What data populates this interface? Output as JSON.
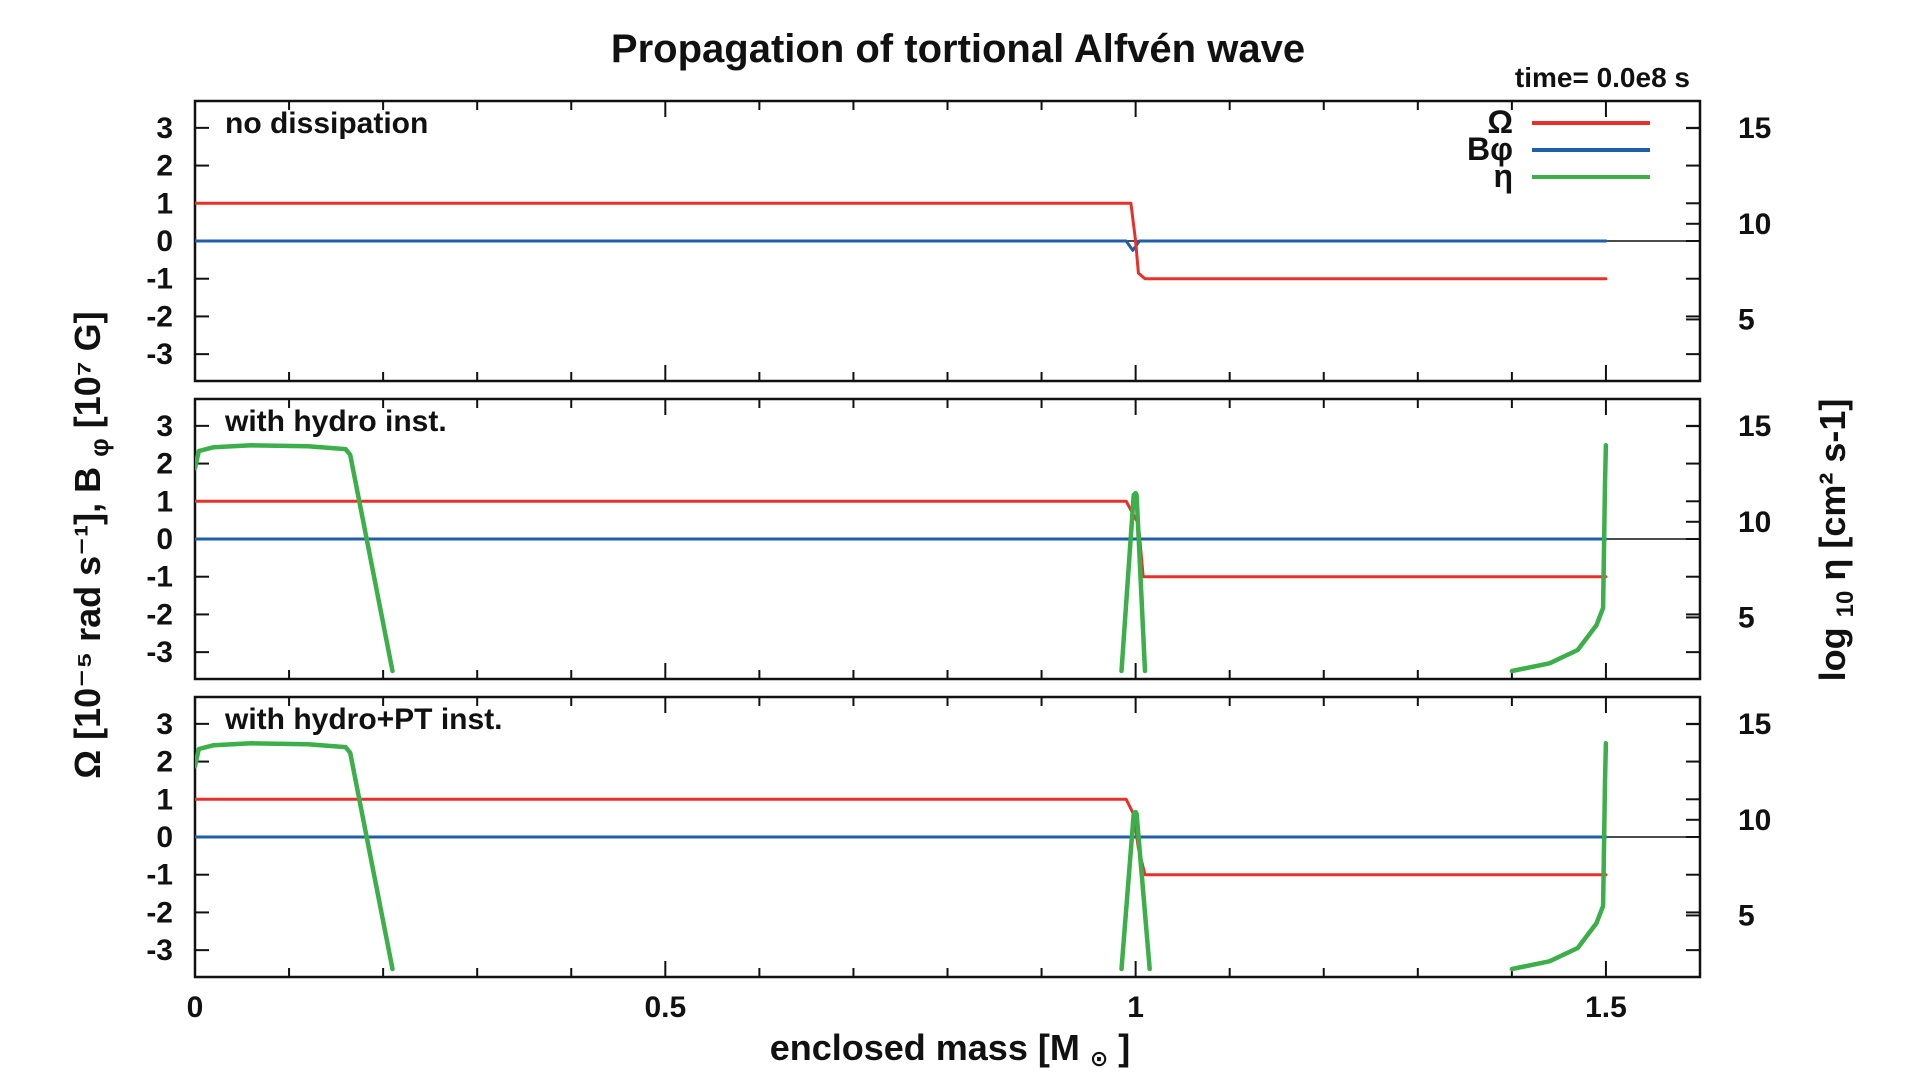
{
  "chart_data": {
    "type": "line",
    "title": "Propagation of tortional Alfvén wave",
    "time_label": "time= 0.0e8 s",
    "xlabel_main": "enclosed mass [M",
    "xlabel_sun": "⊙",
    "xlabel_end": "]",
    "ylabel_left": "Ω [10⁻⁵ rad s⁻¹],  B",
    "ylabel_left_sub": "φ",
    "ylabel_left_tail": " [10⁷ G]",
    "ylabel_right_pre": "log",
    "ylabel_right_sub": "10",
    "ylabel_right_tail": " η [cm² s-1]",
    "xlim": [
      0,
      1.6
    ],
    "ylim_left": [
      -3.5,
      3.5
    ],
    "ylim_right": [
      2.2,
      16
    ],
    "x_ticks": [
      0,
      0.5,
      1,
      1.5
    ],
    "x_tick_labels": [
      "0",
      "0.5",
      "1",
      "1.5"
    ],
    "y_left_ticks": [
      3,
      2,
      1,
      0,
      -1,
      -2,
      -3
    ],
    "y_left_tick_labels": [
      "3",
      "2",
      "1",
      "0",
      "-1",
      "-2",
      "-3"
    ],
    "y_right_ticks": [
      15,
      10,
      5
    ],
    "y_right_tick_labels": [
      "15",
      "10",
      "5"
    ],
    "colors": {
      "omega": "#e8302a",
      "bphi": "#1f5fa8",
      "eta": "#3cae4a"
    },
    "legend": [
      {
        "key": "omega",
        "label": "Ω"
      },
      {
        "key": "bphi",
        "label": "Bφ"
      },
      {
        "key": "eta",
        "label": "η"
      }
    ],
    "panels": [
      {
        "label": "no dissipation",
        "omega": [
          [
            0,
            1
          ],
          [
            0.995,
            1
          ],
          [
            1.0,
            0
          ],
          [
            1.003,
            -0.85
          ],
          [
            1.01,
            -1
          ],
          [
            1.5,
            -1
          ]
        ],
        "bphi": [
          [
            0,
            0
          ],
          [
            0.99,
            0
          ],
          [
            0.997,
            -0.25
          ],
          [
            1.004,
            0
          ],
          [
            1.5,
            0
          ]
        ],
        "eta": []
      },
      {
        "label": "with hydro inst.",
        "omega": [
          [
            0,
            1
          ],
          [
            0.99,
            1
          ],
          [
            1.003,
            0.4
          ],
          [
            1.008,
            -1
          ],
          [
            1.5,
            -1
          ]
        ],
        "bphi": [
          [
            0,
            0
          ],
          [
            1.5,
            0
          ]
        ],
        "eta": [
          [
            [
              0,
              12.8
            ],
            [
              0.004,
              13.7
            ],
            [
              0.02,
              13.9
            ],
            [
              0.06,
              14.0
            ],
            [
              0.12,
              13.95
            ],
            [
              0.16,
              13.8
            ],
            [
              0.165,
              13.5
            ],
            [
              0.21,
              2.2
            ]
          ],
          [
            [
              0.985,
              2.2
            ],
            [
              0.998,
              11.4
            ],
            [
              1.0,
              11.5
            ],
            [
              1.001,
              11.4
            ],
            [
              1.01,
              2.2
            ]
          ],
          [
            [
              1.4,
              2.2
            ],
            [
              1.44,
              2.6
            ],
            [
              1.47,
              3.3
            ],
            [
              1.49,
              4.6
            ],
            [
              1.497,
              5.5
            ],
            [
              1.499,
              12.0
            ],
            [
              1.5,
              14.0
            ]
          ]
        ]
      },
      {
        "label": "with hydro+PT inst.",
        "omega": [
          [
            0,
            1
          ],
          [
            0.99,
            1
          ],
          [
            0.998,
            0.6
          ],
          [
            1.003,
            -0.3
          ],
          [
            1.01,
            -1
          ],
          [
            1.5,
            -1
          ]
        ],
        "bphi": [
          [
            0,
            0
          ],
          [
            1.5,
            0
          ]
        ],
        "eta": [
          [
            [
              0,
              12.8
            ],
            [
              0.004,
              13.7
            ],
            [
              0.02,
              13.9
            ],
            [
              0.06,
              14.0
            ],
            [
              0.12,
              13.95
            ],
            [
              0.16,
              13.8
            ],
            [
              0.165,
              13.5
            ],
            [
              0.21,
              2.2
            ]
          ],
          [
            [
              0.985,
              2.2
            ],
            [
              0.998,
              10.3
            ],
            [
              1.0,
              10.4
            ],
            [
              1.001,
              10.3
            ],
            [
              1.015,
              2.2
            ]
          ],
          [
            [
              1.4,
              2.2
            ],
            [
              1.44,
              2.6
            ],
            [
              1.47,
              3.3
            ],
            [
              1.49,
              4.6
            ],
            [
              1.497,
              5.5
            ],
            [
              1.499,
              12.0
            ],
            [
              1.5,
              14.0
            ]
          ]
        ]
      }
    ]
  }
}
